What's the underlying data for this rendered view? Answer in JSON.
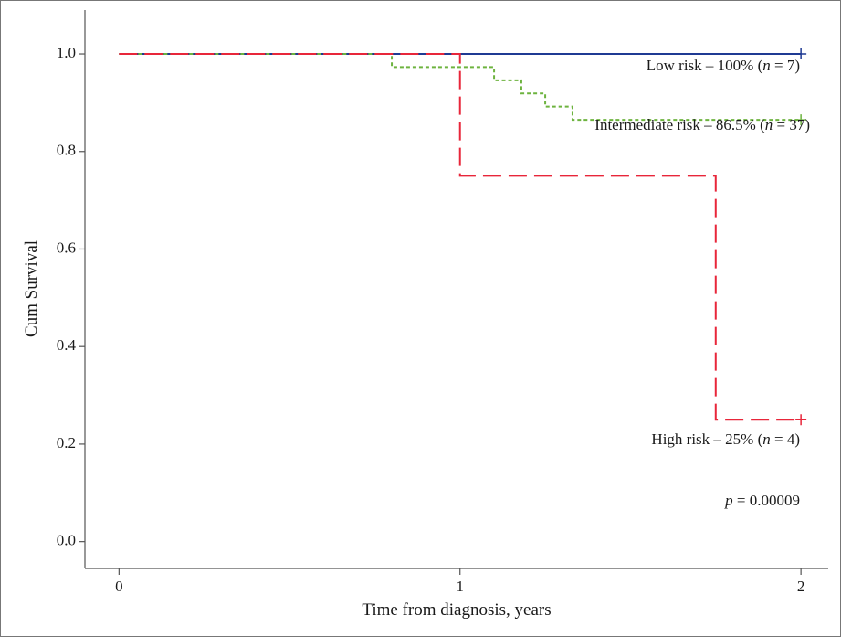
{
  "chart_data": {
    "type": "line",
    "subtype": "kaplan-meier step curve",
    "xlabel": "Time from diagnosis, years",
    "ylabel": "Cum Survival",
    "xlim": [
      -0.1,
      2.08
    ],
    "ylim": [
      -0.055,
      1.09
    ],
    "x_ticks": [
      0,
      1,
      2
    ],
    "y_ticks": [
      0.0,
      0.2,
      0.4,
      0.6,
      0.8,
      1.0
    ],
    "y_tick_labels": [
      "0.0",
      "0.2",
      "0.4",
      "0.6",
      "0.8",
      "1.0"
    ],
    "grid": false,
    "series": [
      {
        "key": "low",
        "color": "#1f3a93",
        "dash": "solid",
        "steps": [
          [
            0,
            1.0
          ],
          [
            2,
            1.0
          ]
        ],
        "censor": [
          [
            2,
            1.0
          ]
        ],
        "label": {
          "prefix": "Low risk – 100% (",
          "n_italic": "n",
          "suffix": " = 7)"
        }
      },
      {
        "key": "intermediate",
        "color": "#6db33f",
        "dash": "dotted",
        "steps": [
          [
            0,
            1.0
          ],
          [
            0.8,
            0.973
          ],
          [
            1.1,
            0.946
          ],
          [
            1.18,
            0.919
          ],
          [
            1.25,
            0.892
          ],
          [
            1.33,
            0.865
          ],
          [
            2,
            0.865
          ]
        ],
        "censor": [
          [
            2,
            0.865
          ]
        ],
        "label": {
          "prefix": "Intermediate risk – 86.5% (",
          "n_italic": "n",
          "suffix": " = 37)"
        }
      },
      {
        "key": "high",
        "color": "#e8263a",
        "dash": "dashed",
        "steps": [
          [
            0,
            1.0
          ],
          [
            1.0,
            0.75
          ],
          [
            1.75,
            0.25
          ],
          [
            2,
            0.25
          ]
        ],
        "censor": [
          [
            2,
            0.25
          ]
        ],
        "label": {
          "prefix": "High risk – 25% (",
          "n_italic": "n",
          "suffix": " = 4)"
        }
      }
    ],
    "p_value": {
      "p_italic": "p",
      "text": " = 0.00009"
    }
  }
}
